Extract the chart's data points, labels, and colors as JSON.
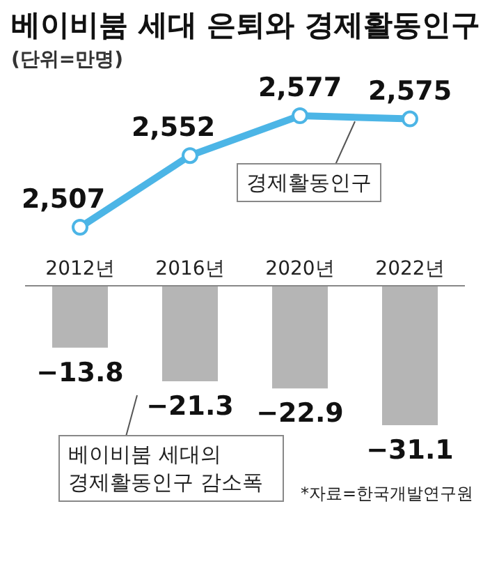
{
  "chart_data": [
    {
      "type": "line",
      "title": "베이비붐 세대 은퇴와 경제활동인구",
      "subtitle": "(단위=만명)",
      "marker": "circle",
      "series": [
        {
          "name": "경제활동인구",
          "color": "#4cb5e6",
          "values": [
            2507,
            2552,
            2577,
            2575
          ],
          "value_labels": [
            "2,507",
            "2,552",
            "2,577",
            "2,575"
          ]
        }
      ]
    },
    {
      "type": "bar",
      "categories": [
        "2012년",
        "2016년",
        "2020년",
        "2022년"
      ],
      "data_labels": true,
      "series": [
        {
          "name": "베이비붐 세대의 경제활동인구 감소폭",
          "color": "#b5b5b5",
          "values": [
            -13.8,
            -21.3,
            -22.9,
            -31.1
          ]
        }
      ],
      "annotations": [
        "*자료=한국개발연구원"
      ]
    }
  ]
}
